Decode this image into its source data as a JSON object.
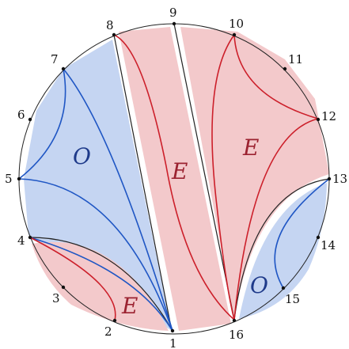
{
  "colors": {
    "odd_fill": "#c5d5f2",
    "even_fill": "#f3c9cb",
    "odd_stroke": "#1f56c4",
    "even_stroke": "#cc1f2a",
    "odd_text": "#1e3a8a",
    "even_text": "#9b2230",
    "circle": "#222222"
  },
  "vertices": [
    "1",
    "2",
    "3",
    "4",
    "5",
    "6",
    "7",
    "8",
    "9",
    "10",
    "11",
    "12",
    "13",
    "14",
    "15",
    "16"
  ],
  "regions": [
    {
      "label": "O",
      "parity": "odd"
    },
    {
      "label": "E",
      "parity": "even"
    },
    {
      "label": "E",
      "parity": "even"
    },
    {
      "label": "E",
      "parity": "even"
    },
    {
      "label": "O",
      "parity": "odd"
    }
  ]
}
